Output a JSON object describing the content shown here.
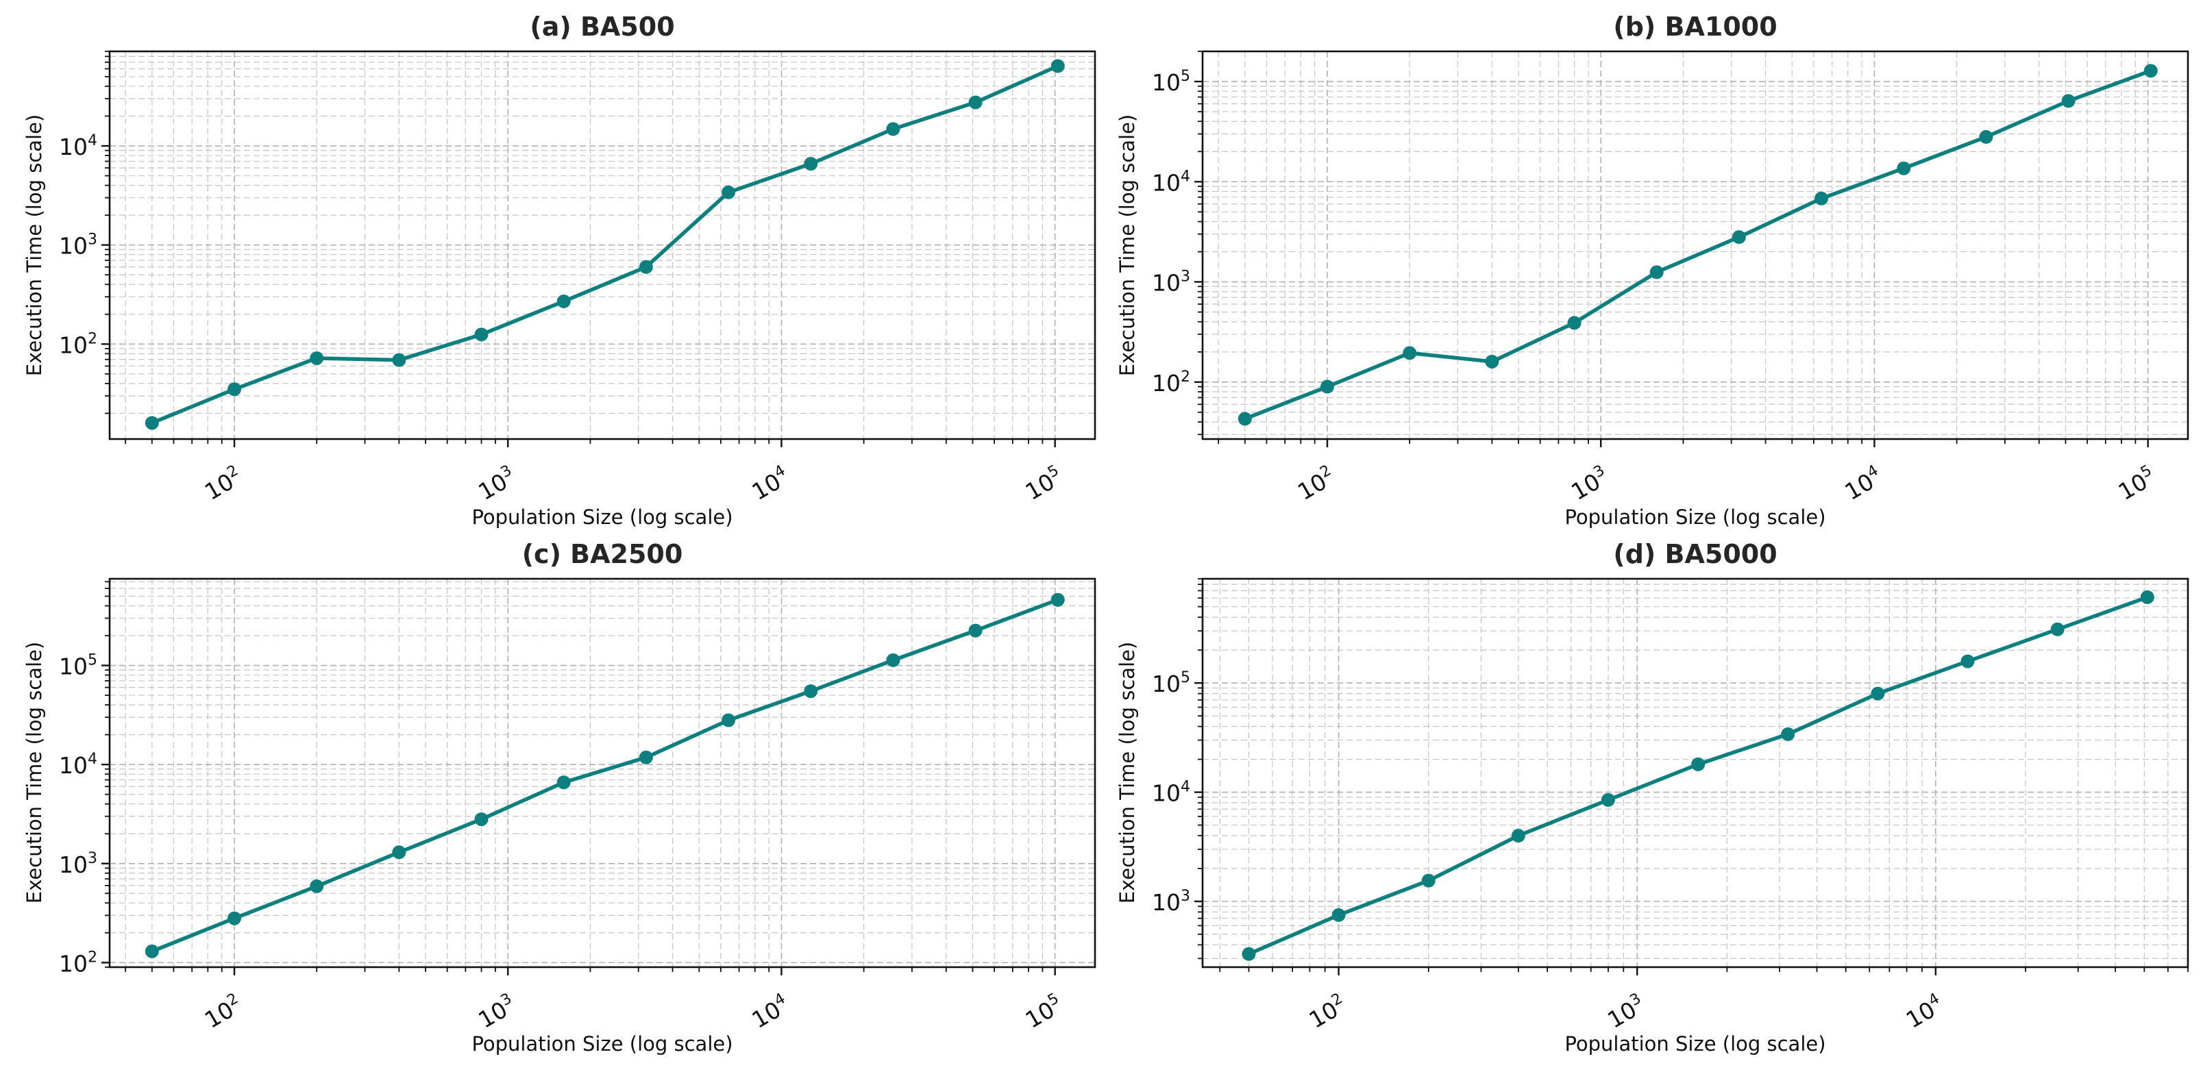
{
  "chart_data": [
    {
      "type": "line",
      "title": "(a) BA500",
      "xlabel": "Population Size (log scale)",
      "ylabel": "Execution Time (log scale)",
      "xscale": "log",
      "yscale": "log",
      "xlim": [
        35,
        140000
      ],
      "ylim": [
        11,
        90000
      ],
      "xticks": [
        100,
        1000,
        10000,
        100000
      ],
      "yticks": [
        100,
        1000,
        10000
      ],
      "grid": true,
      "color": "#0e7f7f",
      "x": [
        50,
        100,
        200,
        400,
        800,
        1600,
        3200,
        6400,
        12800,
        25600,
        51200,
        102400
      ],
      "y": [
        16,
        35,
        72,
        69,
        125,
        270,
        600,
        3400,
        6600,
        14800,
        27500,
        64000
      ]
    },
    {
      "type": "line",
      "title": "(b) BA1000",
      "xlabel": "Population Size (log scale)",
      "ylabel": "Execution Time (log scale)",
      "xscale": "log",
      "yscale": "log",
      "xlim": [
        35,
        140000
      ],
      "ylim": [
        27,
        200000
      ],
      "xticks": [
        100,
        1000,
        10000,
        100000
      ],
      "yticks": [
        100,
        1000,
        10000,
        100000
      ],
      "grid": true,
      "color": "#0e7f7f",
      "x": [
        50,
        100,
        200,
        400,
        800,
        1600,
        3200,
        6400,
        12800,
        25600,
        51200,
        102400
      ],
      "y": [
        43,
        90,
        195,
        160,
        390,
        1250,
        2800,
        6800,
        13600,
        28000,
        64000,
        128000
      ]
    },
    {
      "type": "line",
      "title": "(c) BA2500",
      "xlabel": "Population Size (log scale)",
      "ylabel": "Execution Time (log scale)",
      "xscale": "log",
      "yscale": "log",
      "xlim": [
        35,
        140000
      ],
      "ylim": [
        90,
        750000
      ],
      "xticks": [
        100,
        1000,
        10000,
        100000
      ],
      "yticks": [
        100,
        1000,
        10000,
        100000
      ],
      "grid": true,
      "color": "#0e7f7f",
      "x": [
        50,
        100,
        200,
        400,
        800,
        1600,
        3200,
        6400,
        12800,
        25600,
        51200,
        102400
      ],
      "y": [
        130,
        280,
        590,
        1300,
        2800,
        6600,
        11800,
        28000,
        55000,
        113000,
        225000,
        460000
      ]
    },
    {
      "type": "line",
      "title": "(d) BA5000",
      "xlabel": "Population Size (log scale)",
      "ylabel": "Execution Time (log scale)",
      "xscale": "log",
      "yscale": "log",
      "xlim": [
        35,
        70000
      ],
      "ylim": [
        250,
        900000
      ],
      "xticks": [
        100,
        1000,
        10000
      ],
      "yticks": [
        1000,
        10000,
        100000
      ],
      "grid": true,
      "color": "#0e7f7f",
      "x": [
        50,
        100,
        200,
        400,
        800,
        1600,
        3200,
        6400,
        12800,
        25600,
        51200
      ],
      "y": [
        330,
        750,
        1550,
        4000,
        8500,
        18000,
        34000,
        80000,
        158000,
        310000,
        610000
      ]
    }
  ]
}
